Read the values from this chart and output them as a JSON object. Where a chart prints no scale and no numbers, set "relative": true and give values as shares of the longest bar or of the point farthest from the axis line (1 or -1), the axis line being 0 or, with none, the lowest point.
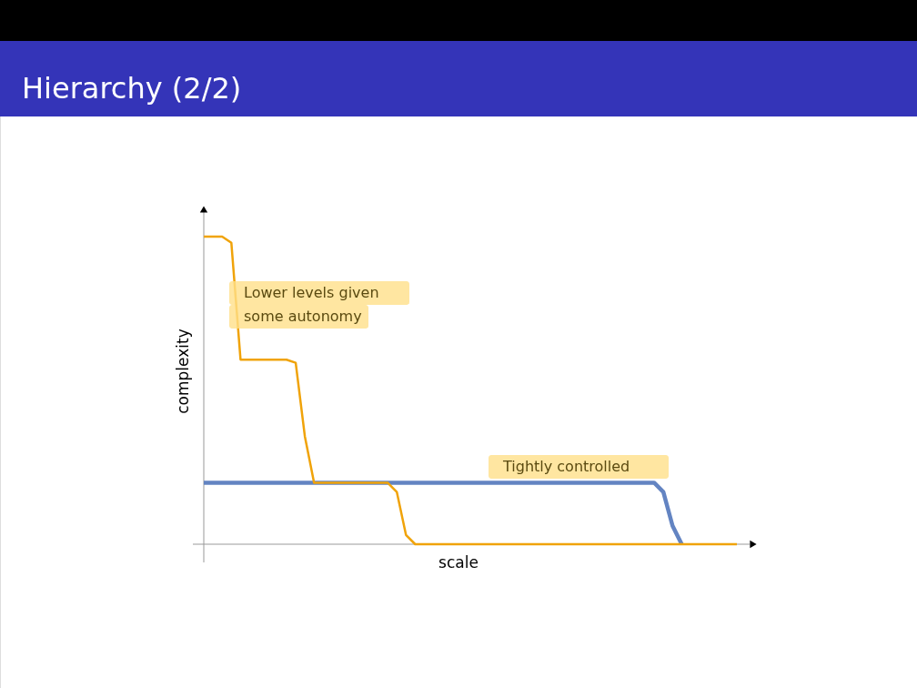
{
  "chart_data": {
    "type": "line",
    "title": "Hierarchy (2/2)",
    "xlabel": "scale",
    "ylabel": "complexity",
    "relative": true,
    "marker": "none",
    "line_style": "solid",
    "categories": [
      null,
      null,
      null,
      null,
      null,
      null,
      null,
      null,
      null,
      null,
      null,
      null,
      null,
      null,
      null,
      null,
      null,
      null,
      null,
      null,
      null,
      null,
      null,
      null,
      null,
      null,
      null,
      null,
      null,
      null,
      null,
      null,
      null,
      null,
      null,
      null,
      null,
      null,
      null,
      null,
      null,
      null,
      null,
      null,
      null,
      null,
      null,
      null,
      null,
      null,
      null,
      null,
      null,
      null,
      null,
      null,
      null,
      null,
      null
    ],
    "series": [
      {
        "color": "#f0a30a",
        "values": [
          1,
          1,
          1,
          0.98,
          0.6,
          0.6,
          0.6,
          0.6,
          0.6,
          0.6,
          0.59,
          0.35,
          0.2,
          0.2,
          0.2,
          0.2,
          0.2,
          0.2,
          0.2,
          0.2,
          0.2,
          0.17,
          0.03,
          0,
          0,
          0,
          0,
          0,
          0,
          0,
          0,
          0,
          0,
          0,
          0,
          0,
          0,
          0,
          0,
          0,
          0,
          0,
          0,
          0,
          0,
          0,
          0,
          0,
          0,
          0,
          0,
          0,
          0,
          0,
          0,
          0,
          0,
          0,
          0
        ]
      },
      {
        "color": "#6384c2",
        "values": [
          0.2,
          0.2,
          0.2,
          0.2,
          0.2,
          0.2,
          0.2,
          0.2,
          0.2,
          0.2,
          0.2,
          0.2,
          0.2,
          0.2,
          0.2,
          0.2,
          0.2,
          0.2,
          0.2,
          0.2,
          0.2,
          0.2,
          0.2,
          0.2,
          0.2,
          0.2,
          0.2,
          0.2,
          0.2,
          0.2,
          0.2,
          0.2,
          0.2,
          0.2,
          0.2,
          0.2,
          0.2,
          0.2,
          0.2,
          0.2,
          0.2,
          0.2,
          0.2,
          0.2,
          0.2,
          0.2,
          0.2,
          0.2,
          0.2,
          0.2,
          0.17,
          0.06,
          0,
          null,
          null,
          null,
          null,
          null,
          null
        ]
      }
    ],
    "annotations": [
      "Lower levels given\nsome autonomy",
      "Tightly controlled"
    ]
  }
}
